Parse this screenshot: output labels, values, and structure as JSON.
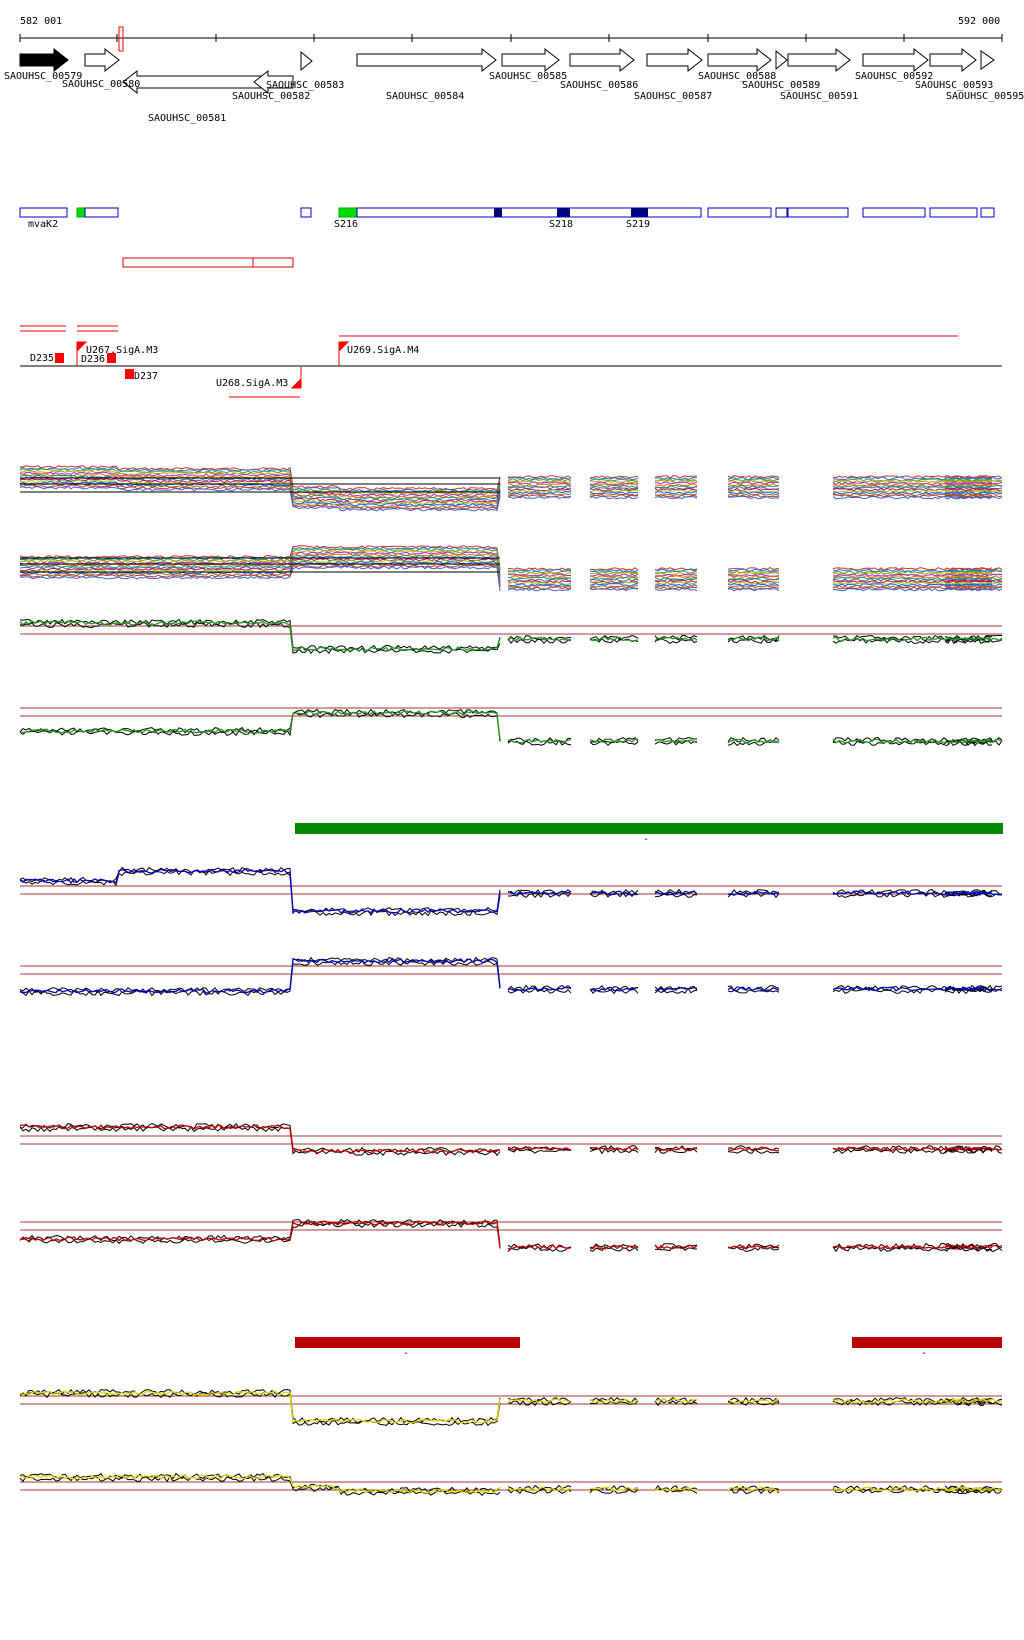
{
  "coords": {
    "start": "582 001",
    "end": "592 000"
  },
  "genes": [
    {
      "label": "SAOUHSC_00579"
    },
    {
      "label": "SAOUHSC_00580"
    },
    {
      "label": "SAOUHSC_00581"
    },
    {
      "label": "SAOUHSC_00582"
    },
    {
      "label": "SAOUHSC_00583"
    },
    {
      "label": "SAOUHSC_00584"
    },
    {
      "label": "SAOUHSC_00585"
    },
    {
      "label": "SAOUHSC_00586"
    },
    {
      "label": "SAOUHSC_00587"
    },
    {
      "label": "SAOUHSC_00588"
    },
    {
      "label": "SAOUHSC_00589"
    },
    {
      "label": "SAOUHSC_00591"
    },
    {
      "label": "SAOUHSC_00592"
    },
    {
      "label": "SAOUHSC_00593"
    },
    {
      "label": "SAOUHSC_00595"
    }
  ],
  "features": [
    {
      "label": "mvaK2"
    },
    {
      "label": "S216"
    },
    {
      "label": "S218"
    },
    {
      "label": "S219"
    }
  ],
  "regulatory": [
    {
      "label": "U267.SigA.M3"
    },
    {
      "label": "D235"
    },
    {
      "label": "D236"
    },
    {
      "label": "D237"
    },
    {
      "label": "U268.SigA.M3"
    },
    {
      "label": "U269.SigA.M4"
    }
  ],
  "bar_marks": [
    "-",
    "-",
    "-"
  ],
  "colors": {
    "gene_filled": "#000000",
    "feature_box": "#0000cc",
    "feature_green": "#00dd00",
    "feature_dark": "#000080",
    "regulatory_red": "#ff0000",
    "green_bar": "#008800",
    "red_bar": "#bb0000",
    "track_blue": "#0000cc",
    "track_green": "#229922",
    "track_red": "#cc0000",
    "track_yellow": "#dddd00",
    "threshold_line": "#aa3333"
  }
}
